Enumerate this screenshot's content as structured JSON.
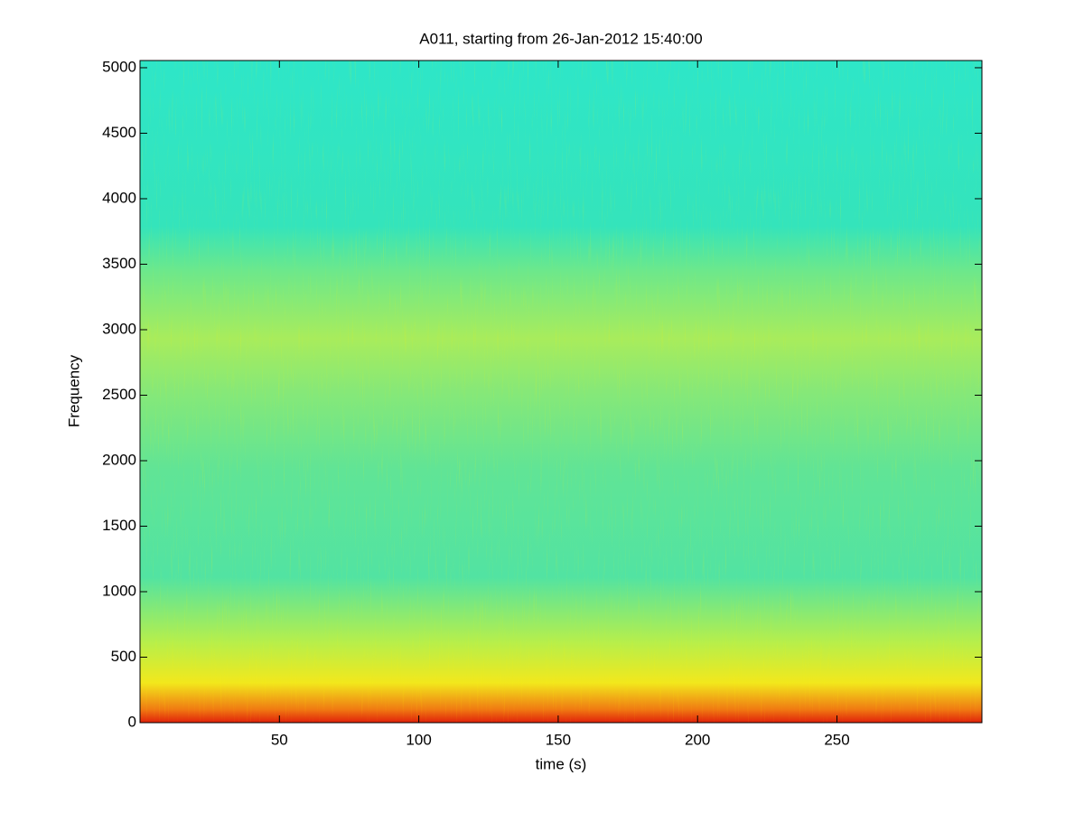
{
  "chart_data": {
    "type": "spectrogram",
    "title": "A011, starting from 26-Jan-2012 15:40:00",
    "xlabel": "time (s)",
    "ylabel": "Frequency",
    "xlim": [
      0,
      302
    ],
    "xticks": [
      50,
      100,
      150,
      200,
      250
    ],
    "ylim": [
      0,
      5055
    ],
    "yticks": [
      0,
      500,
      1000,
      1500,
      2000,
      2500,
      3000,
      3500,
      4000,
      4500,
      5000
    ]
  }
}
